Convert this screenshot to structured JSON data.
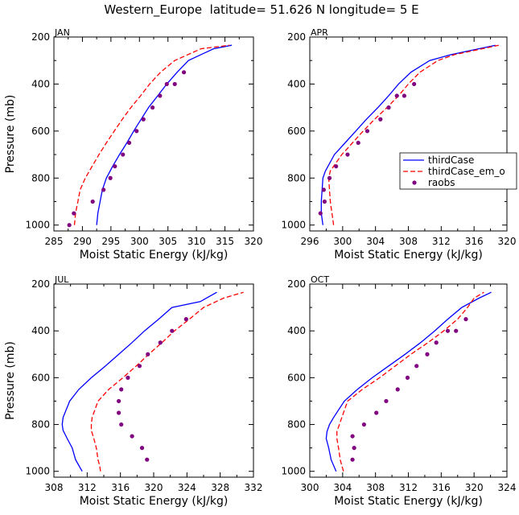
{
  "title": "Western_Europe  latitude= 51.626 N longitude= 5 E",
  "colors": {
    "thirdCase": "#0000ff",
    "thirdCase_em": "#ff0000",
    "raobs": "#800080"
  },
  "legend": {
    "items": [
      "thirdCase",
      "thirdCase_em_o",
      "raobs"
    ],
    "placement": "right of APR panel"
  },
  "chart_data": [
    {
      "type": "line",
      "panel": "JAN",
      "xlabel": "Moist Static Energy (kJ/kg)",
      "ylabel": "Pressure (mb)",
      "xlim": [
        285,
        320
      ],
      "ylim": [
        1025,
        200
      ],
      "xticks": [
        285,
        290,
        295,
        300,
        305,
        310,
        315,
        320
      ],
      "yticks": [
        200,
        400,
        600,
        800,
        1000
      ],
      "series": [
        {
          "name": "thirdCase",
          "style": "solid",
          "points": [
            [
              292.5,
              1000
            ],
            [
              292.6,
              975
            ],
            [
              292.7,
              950
            ],
            [
              292.9,
              925
            ],
            [
              293.1,
              900
            ],
            [
              293.5,
              850
            ],
            [
              294.2,
              800
            ],
            [
              295.3,
              750
            ],
            [
              296.5,
              700
            ],
            [
              297.8,
              650
            ],
            [
              299.0,
              600
            ],
            [
              300.3,
              550
            ],
            [
              301.6,
              500
            ],
            [
              303.2,
              450
            ],
            [
              304.8,
              400
            ],
            [
              306.6,
              350
            ],
            [
              308.6,
              300
            ],
            [
              313.0,
              250
            ],
            [
              316.2,
              235
            ]
          ]
        },
        {
          "name": "thirdCase_em_o",
          "style": "dashed",
          "points": [
            [
              288.6,
              1000
            ],
            [
              288.7,
              975
            ],
            [
              288.8,
              950
            ],
            [
              289.0,
              925
            ],
            [
              289.2,
              900
            ],
            [
              289.6,
              850
            ],
            [
              290.5,
              800
            ],
            [
              291.7,
              750
            ],
            [
              292.9,
              700
            ],
            [
              294.2,
              650
            ],
            [
              295.6,
              600
            ],
            [
              297.0,
              550
            ],
            [
              298.5,
              500
            ],
            [
              300.2,
              450
            ],
            [
              301.8,
              400
            ],
            [
              303.7,
              350
            ],
            [
              306.2,
              300
            ],
            [
              310.8,
              250
            ],
            [
              315.8,
              235
            ]
          ]
        },
        {
          "name": "raobs",
          "style": "points",
          "points": [
            [
              287.7,
              1000
            ],
            [
              288.5,
              950
            ],
            [
              291.8,
              900
            ],
            [
              293.7,
              850
            ],
            [
              294.9,
              800
            ],
            [
              295.7,
              750
            ],
            [
              297.1,
              700
            ],
            [
              298.2,
              650
            ],
            [
              299.5,
              600
            ],
            [
              300.7,
              550
            ],
            [
              302.3,
              500
            ],
            [
              303.6,
              450
            ],
            [
              304.8,
              400
            ],
            [
              306.2,
              400
            ],
            [
              307.8,
              350
            ]
          ]
        }
      ]
    },
    {
      "type": "line",
      "panel": "APR",
      "xlabel": "Moist Static Energy (kJ/kg)",
      "ylabel": "",
      "xlim": [
        296,
        320
      ],
      "ylim": [
        1025,
        200
      ],
      "xticks": [
        296,
        300,
        304,
        308,
        312,
        316,
        320
      ],
      "yticks": [
        200,
        400,
        600,
        800,
        1000
      ],
      "series": [
        {
          "name": "thirdCase",
          "style": "solid",
          "points": [
            [
              297.6,
              1000
            ],
            [
              297.5,
              975
            ],
            [
              297.4,
              950
            ],
            [
              297.4,
              925
            ],
            [
              297.4,
              900
            ],
            [
              297.5,
              850
            ],
            [
              297.6,
              800
            ],
            [
              297.9,
              770
            ],
            [
              299.0,
              700
            ],
            [
              300.3,
              650
            ],
            [
              301.6,
              600
            ],
            [
              302.9,
              550
            ],
            [
              304.3,
              500
            ],
            [
              305.6,
              450
            ],
            [
              306.8,
              400
            ],
            [
              308.3,
              350
            ],
            [
              310.6,
              300
            ],
            [
              313.2,
              275
            ],
            [
              318.6,
              235
            ]
          ]
        },
        {
          "name": "thirdCase_em_o",
          "style": "dashed",
          "points": [
            [
              298.9,
              1000
            ],
            [
              298.8,
              975
            ],
            [
              298.7,
              950
            ],
            [
              298.6,
              925
            ],
            [
              298.5,
              900
            ],
            [
              298.4,
              850
            ],
            [
              298.3,
              800
            ],
            [
              298.5,
              770
            ],
            [
              299.9,
              700
            ],
            [
              301.2,
              650
            ],
            [
              302.5,
              600
            ],
            [
              303.9,
              550
            ],
            [
              305.4,
              500
            ],
            [
              306.8,
              450
            ],
            [
              308.0,
              400
            ],
            [
              309.4,
              350
            ],
            [
              311.6,
              300
            ],
            [
              313.6,
              275
            ],
            [
              319.0,
              235
            ]
          ]
        },
        {
          "name": "raobs",
          "style": "points",
          "points": [
            [
              297.3,
              950
            ],
            [
              297.8,
              900
            ],
            [
              297.7,
              850
            ],
            [
              298.4,
              800
            ],
            [
              299.2,
              750
            ],
            [
              300.6,
              700
            ],
            [
              301.9,
              650
            ],
            [
              303.0,
              600
            ],
            [
              304.6,
              550
            ],
            [
              305.6,
              500
            ],
            [
              306.6,
              450
            ],
            [
              307.5,
              450
            ],
            [
              308.7,
              400
            ]
          ]
        }
      ]
    },
    {
      "type": "line",
      "panel": "JUL",
      "xlabel": "Moist Static Energy (kJ/kg)",
      "ylabel": "Pressure (mb)",
      "xlim": [
        308,
        332
      ],
      "ylim": [
        1025,
        200
      ],
      "xticks": [
        308,
        312,
        316,
        320,
        324,
        328,
        332
      ],
      "yticks": [
        200,
        400,
        600,
        800,
        1000
      ],
      "series": [
        {
          "name": "thirdCase",
          "style": "solid",
          "points": [
            [
              311.4,
              1000
            ],
            [
              311.0,
              975
            ],
            [
              310.6,
              950
            ],
            [
              310.2,
              900
            ],
            [
              309.6,
              860
            ],
            [
              309.1,
              825
            ],
            [
              309.0,
              800
            ],
            [
              309.1,
              770
            ],
            [
              309.9,
              700
            ],
            [
              311.0,
              650
            ],
            [
              312.5,
              600
            ],
            [
              314.2,
              550
            ],
            [
              315.8,
              500
            ],
            [
              317.4,
              450
            ],
            [
              318.9,
              400
            ],
            [
              320.6,
              350
            ],
            [
              322.2,
              300
            ],
            [
              325.6,
              275
            ],
            [
              327.6,
              235
            ]
          ]
        },
        {
          "name": "thirdCase_em_o",
          "style": "dashed",
          "points": [
            [
              313.6,
              1000
            ],
            [
              313.5,
              975
            ],
            [
              313.3,
              950
            ],
            [
              313.1,
              900
            ],
            [
              312.8,
              860
            ],
            [
              312.5,
              825
            ],
            [
              312.5,
              800
            ],
            [
              312.6,
              770
            ],
            [
              313.3,
              700
            ],
            [
              314.6,
              650
            ],
            [
              316.3,
              600
            ],
            [
              317.9,
              550
            ],
            [
              319.4,
              500
            ],
            [
              321.0,
              450
            ],
            [
              322.5,
              400
            ],
            [
              324.3,
              350
            ],
            [
              326.0,
              300
            ],
            [
              328.4,
              260
            ],
            [
              330.8,
              235
            ]
          ]
        },
        {
          "name": "raobs",
          "style": "points",
          "points": [
            [
              319.2,
              950
            ],
            [
              318.6,
              900
            ],
            [
              317.4,
              850
            ],
            [
              316.1,
              800
            ],
            [
              315.8,
              750
            ],
            [
              315.8,
              700
            ],
            [
              316.1,
              650
            ],
            [
              316.9,
              600
            ],
            [
              318.3,
              550
            ],
            [
              319.3,
              500
            ],
            [
              320.8,
              450
            ],
            [
              322.2,
              400
            ],
            [
              323.9,
              350
            ]
          ]
        }
      ]
    },
    {
      "type": "line",
      "panel": "OCT",
      "xlabel": "Moist Static Energy (kJ/kg)",
      "ylabel": "",
      "xlim": [
        300,
        324
      ],
      "ylim": [
        1025,
        200
      ],
      "xticks": [
        300,
        304,
        308,
        312,
        316,
        320,
        324
      ],
      "yticks": [
        200,
        400,
        600,
        800,
        1000
      ],
      "series": [
        {
          "name": "thirdCase",
          "style": "solid",
          "points": [
            [
              303.2,
              1000
            ],
            [
              302.9,
              975
            ],
            [
              302.6,
              950
            ],
            [
              302.3,
              900
            ],
            [
              302.0,
              860
            ],
            [
              302.1,
              830
            ],
            [
              302.4,
              800
            ],
            [
              302.9,
              770
            ],
            [
              304.2,
              700
            ],
            [
              305.8,
              650
            ],
            [
              307.6,
              600
            ],
            [
              309.6,
              550
            ],
            [
              311.6,
              500
            ],
            [
              313.5,
              450
            ],
            [
              315.2,
              400
            ],
            [
              316.8,
              350
            ],
            [
              318.5,
              300
            ],
            [
              320.6,
              260
            ],
            [
              322.1,
              235
            ]
          ]
        },
        {
          "name": "thirdCase_em_o",
          "style": "dashed",
          "points": [
            [
              304.1,
              1000
            ],
            [
              303.9,
              975
            ],
            [
              303.7,
              950
            ],
            [
              303.5,
              900
            ],
            [
              303.3,
              860
            ],
            [
              303.3,
              830
            ],
            [
              303.6,
              800
            ],
            [
              303.9,
              770
            ],
            [
              304.6,
              700
            ],
            [
              306.4,
              650
            ],
            [
              308.5,
              600
            ],
            [
              310.4,
              550
            ],
            [
              312.3,
              500
            ],
            [
              314.4,
              450
            ],
            [
              316.3,
              400
            ],
            [
              318.0,
              350
            ],
            [
              319.2,
              300
            ],
            [
              320.0,
              260
            ],
            [
              321.2,
              235
            ]
          ]
        },
        {
          "name": "raobs",
          "style": "points",
          "points": [
            [
              305.2,
              950
            ],
            [
              305.4,
              900
            ],
            [
              305.2,
              850
            ],
            [
              306.6,
              800
            ],
            [
              308.1,
              750
            ],
            [
              309.3,
              700
            ],
            [
              310.7,
              650
            ],
            [
              311.9,
              600
            ],
            [
              313.0,
              550
            ],
            [
              314.3,
              500
            ],
            [
              315.4,
              450
            ],
            [
              316.8,
              400
            ],
            [
              317.8,
              400
            ],
            [
              319.0,
              350
            ]
          ]
        }
      ]
    }
  ]
}
